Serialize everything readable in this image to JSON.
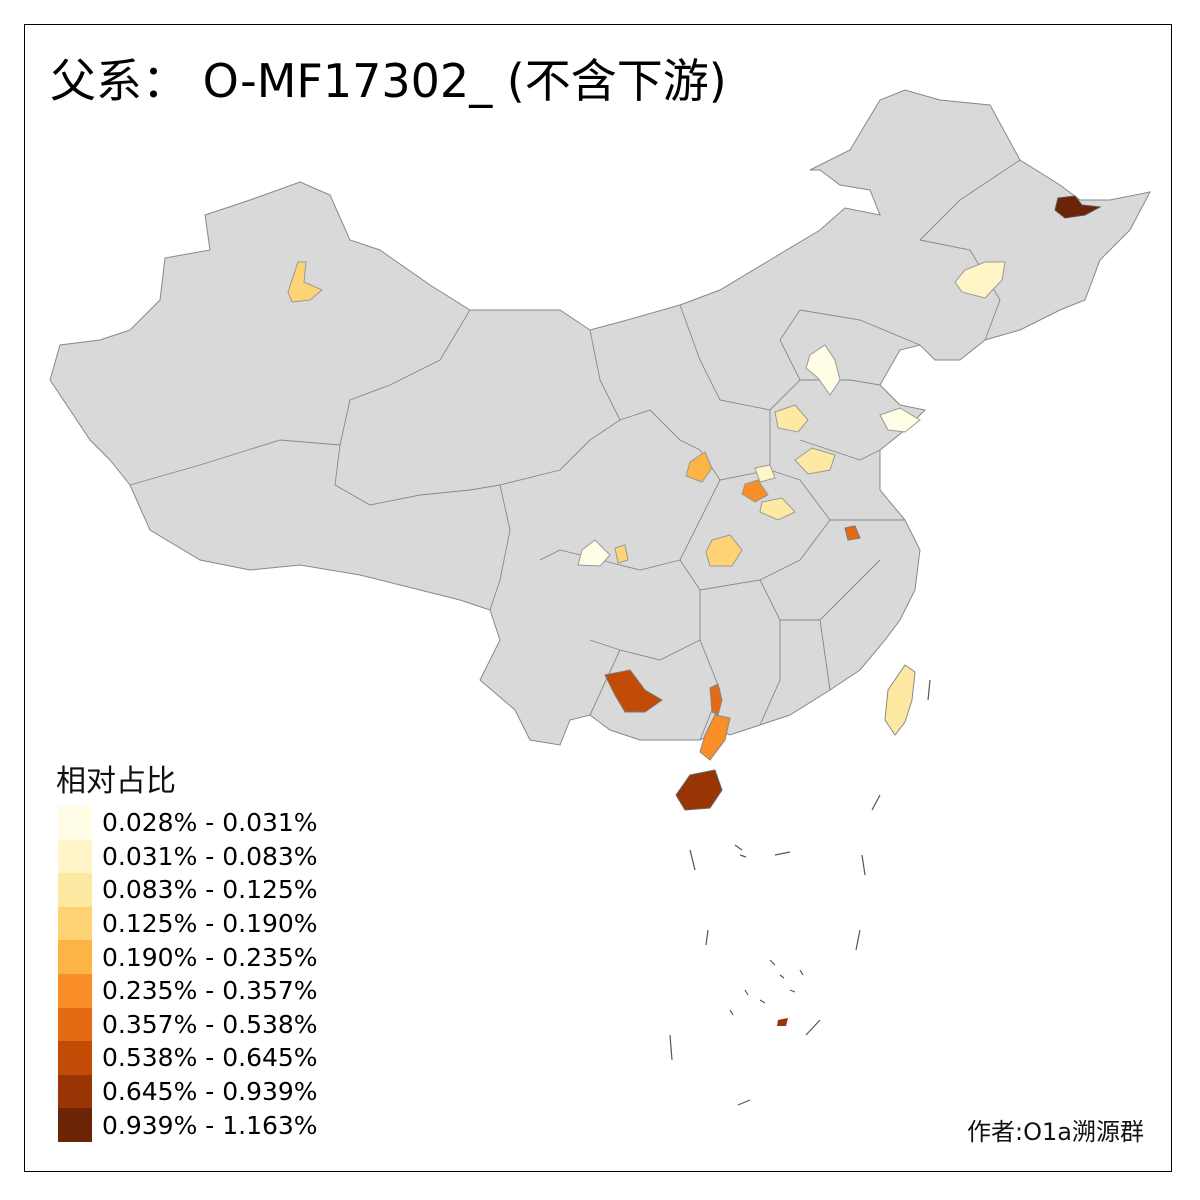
{
  "title": "父系： O-MF17302_ (不含下游)",
  "legend": {
    "title": "相对占比",
    "items": [
      {
        "label": "0.028% - 0.031%",
        "color": "#fffde6"
      },
      {
        "label": "0.031% - 0.083%",
        "color": "#fff5c6"
      },
      {
        "label": "0.083% - 0.125%",
        "color": "#fee9a3"
      },
      {
        "label": "0.125% - 0.190%",
        "color": "#fed373"
      },
      {
        "label": "0.190% - 0.235%",
        "color": "#feb444"
      },
      {
        "label": "0.235% - 0.357%",
        "color": "#f98d28"
      },
      {
        "label": "0.357% - 0.538%",
        "color": "#e46a13"
      },
      {
        "label": "0.538% - 0.645%",
        "color": "#c24b06"
      },
      {
        "label": "0.645% - 0.939%",
        "color": "#993404"
      },
      {
        "label": "0.939% - 1.163%",
        "color": "#6b2405"
      }
    ]
  },
  "credit": "作者:O1a溯源群",
  "map": {
    "base_color": "#d9d9d9",
    "border_color": "#888888"
  }
}
